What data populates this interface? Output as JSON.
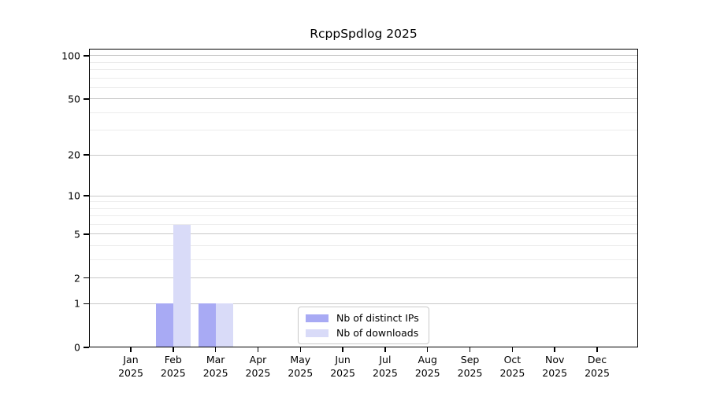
{
  "figure": {
    "background": "#ffffff"
  },
  "chart_data": {
    "type": "bar",
    "title": "RcppSpdlog 2025",
    "categories": [
      {
        "month": "Jan",
        "year": "2025"
      },
      {
        "month": "Feb",
        "year": "2025"
      },
      {
        "month": "Mar",
        "year": "2025"
      },
      {
        "month": "Apr",
        "year": "2025"
      },
      {
        "month": "May",
        "year": "2025"
      },
      {
        "month": "Jun",
        "year": "2025"
      },
      {
        "month": "Jul",
        "year": "2025"
      },
      {
        "month": "Aug",
        "year": "2025"
      },
      {
        "month": "Sep",
        "year": "2025"
      },
      {
        "month": "Oct",
        "year": "2025"
      },
      {
        "month": "Nov",
        "year": "2025"
      },
      {
        "month": "Dec",
        "year": "2025"
      }
    ],
    "series": [
      {
        "name": "Nb of distinct IPs",
        "color": "#a8aaf4",
        "values": [
          0,
          1,
          1,
          0,
          0,
          0,
          0,
          0,
          0,
          0,
          0,
          0
        ]
      },
      {
        "name": "Nb of downloads",
        "color": "#d9dbf8",
        "values": [
          0,
          6,
          1,
          0,
          0,
          0,
          0,
          0,
          0,
          0,
          0,
          0
        ]
      }
    ],
    "xlabel": "",
    "ylabel": "",
    "yscale": "log1p",
    "ylim": [
      0,
      112
    ],
    "y_major_ticks": [
      0,
      1,
      2,
      5,
      10,
      20,
      50,
      100
    ],
    "y_minor_gridlines": [
      3,
      4,
      6,
      7,
      8,
      9,
      30,
      40,
      60,
      70,
      80,
      90
    ],
    "grid": "horizontal",
    "legend_position": "lower center"
  },
  "colors": {
    "major_grid": "#c8c8c8",
    "minor_grid": "#ececec",
    "axis": "#000000",
    "legend_border": "#c9c9c9"
  }
}
